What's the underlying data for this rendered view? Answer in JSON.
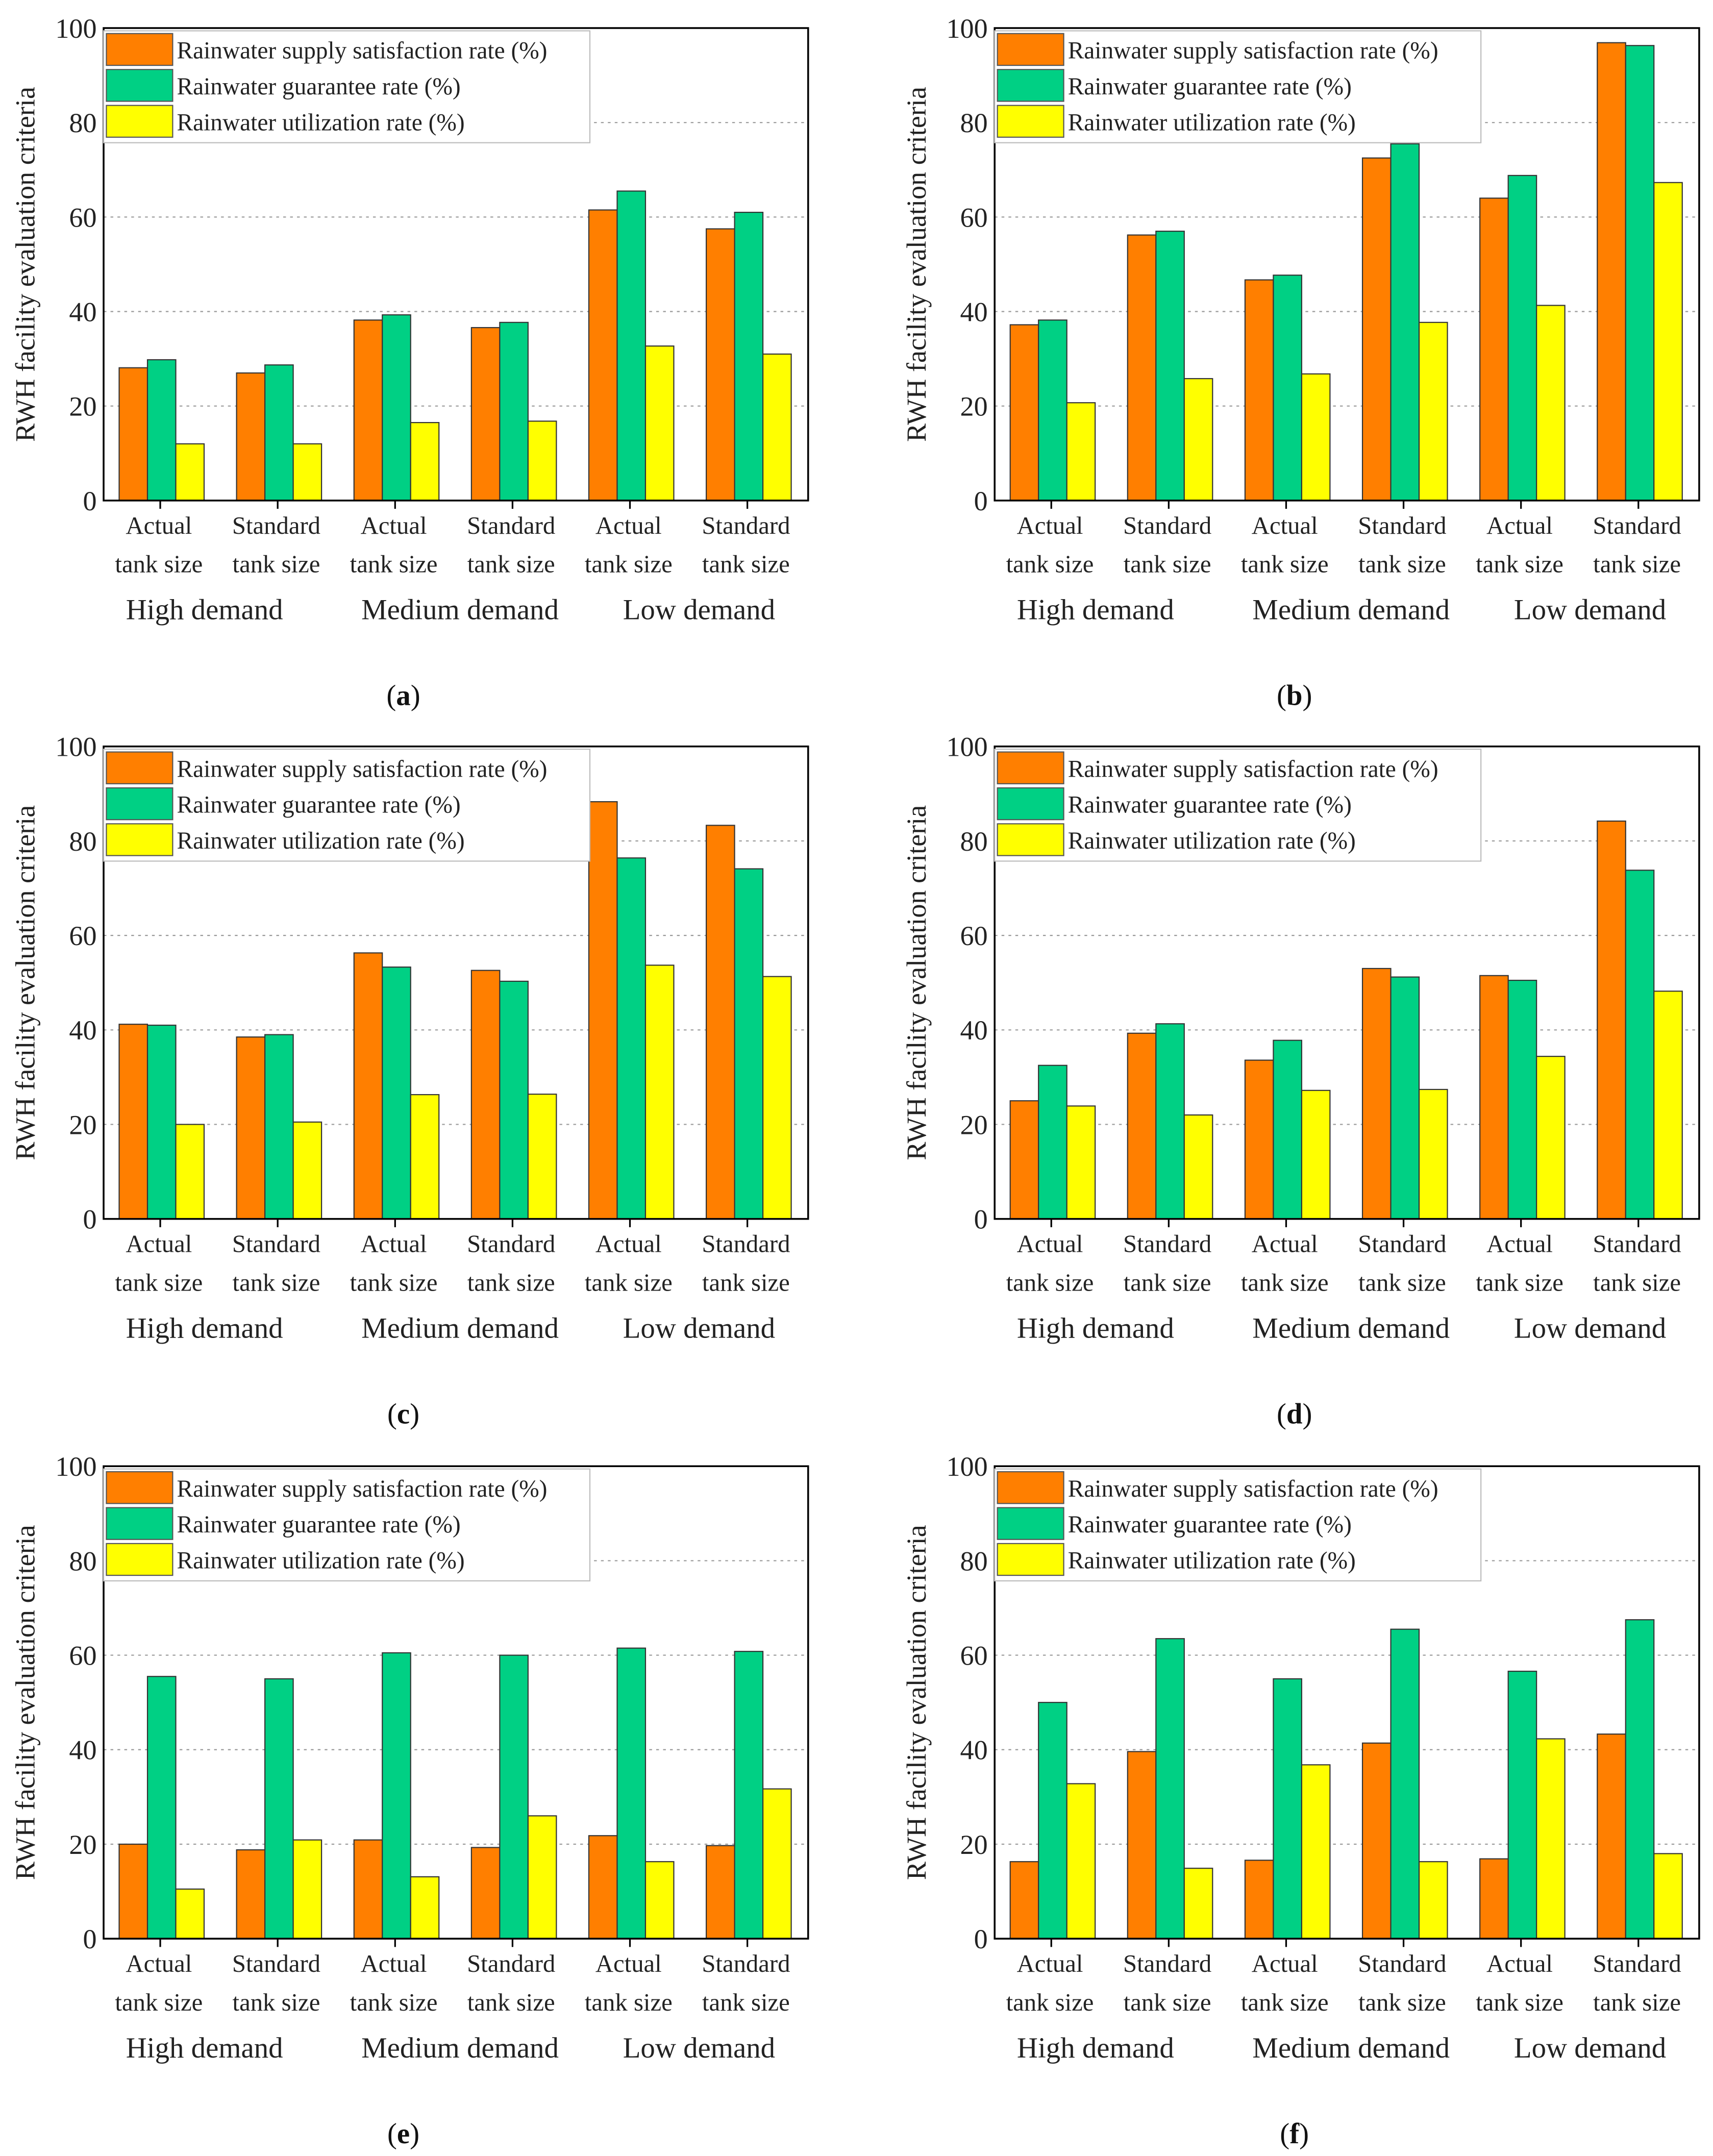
{
  "colors": {
    "supply": "#ff7f00",
    "guarantee": "#00d084",
    "utilization": "#ffff00"
  },
  "chart_data": [
    {
      "type": "bar",
      "panel_label": "a",
      "ylabel": "RWH facility evaluation criteria",
      "ylim": [
        0,
        100
      ],
      "yticks": [
        "0",
        "20",
        "40",
        "60",
        "80",
        "100"
      ],
      "categories": [
        [
          "Actual",
          "tank size"
        ],
        [
          "Standard",
          "tank size"
        ],
        [
          "Actual",
          "tank size"
        ],
        [
          "Standard",
          "tank size"
        ],
        [
          "Actual",
          "tank size"
        ],
        [
          "Standard",
          "tank size"
        ]
      ],
      "groups": [
        "High demand",
        "Medium demand",
        "Low demand"
      ],
      "legend_position": "top-left",
      "grid": "dashed horizontal",
      "series": [
        {
          "name": "Rainwater supply satisfaction rate (%)",
          "values": [
            28.1,
            27.0,
            38.2,
            36.6,
            61.5,
            57.5
          ]
        },
        {
          "name": "Rainwater guarantee rate (%)",
          "values": [
            29.8,
            28.7,
            39.3,
            37.7,
            65.5,
            61.0
          ]
        },
        {
          "name": "Rainwater utilization rate (%)",
          "values": [
            12.0,
            12.0,
            16.5,
            16.8,
            32.7,
            31.0
          ]
        }
      ]
    },
    {
      "type": "bar",
      "panel_label": "b",
      "ylabel": "RWH facility evaluation criteria",
      "ylim": [
        0,
        100
      ],
      "yticks": [
        "0",
        "20",
        "40",
        "60",
        "80",
        "100"
      ],
      "categories": [
        [
          "Actual",
          "tank size"
        ],
        [
          "Standard",
          "tank size"
        ],
        [
          "Actual",
          "tank size"
        ],
        [
          "Standard",
          "tank size"
        ],
        [
          "Actual",
          "tank size"
        ],
        [
          "Standard",
          "tank size"
        ]
      ],
      "groups": [
        "High demand",
        "Medium demand",
        "Low demand"
      ],
      "legend_position": "top-left",
      "grid": "dashed horizontal",
      "series": [
        {
          "name": "Rainwater supply satisfaction rate (%)",
          "values": [
            37.2,
            56.2,
            46.7,
            72.5,
            64.0,
            96.9
          ]
        },
        {
          "name": "Rainwater guarantee rate (%)",
          "values": [
            38.2,
            57.0,
            47.7,
            75.5,
            68.8,
            96.3
          ]
        },
        {
          "name": "Rainwater utilization rate (%)",
          "values": [
            20.7,
            25.8,
            26.8,
            37.7,
            41.3,
            67.3
          ]
        }
      ]
    },
    {
      "type": "bar",
      "panel_label": "c",
      "ylabel": "RWH facility evaluation criteria",
      "ylim": [
        0,
        100
      ],
      "yticks": [
        "0",
        "20",
        "40",
        "60",
        "80",
        "100"
      ],
      "categories": [
        [
          "Actual",
          "tank size"
        ],
        [
          "Standard",
          "tank size"
        ],
        [
          "Actual",
          "tank size"
        ],
        [
          "Standard",
          "tank size"
        ],
        [
          "Actual",
          "tank size"
        ],
        [
          "Standard",
          "tank size"
        ]
      ],
      "groups": [
        "High demand",
        "Medium demand",
        "Low demand"
      ],
      "legend_position": "top-left",
      "grid": "dashed horizontal",
      "series": [
        {
          "name": "Rainwater supply satisfaction rate (%)",
          "values": [
            41.2,
            38.5,
            56.3,
            52.6,
            88.3,
            83.3
          ]
        },
        {
          "name": "Rainwater guarantee rate (%)",
          "values": [
            41.0,
            39.0,
            53.3,
            50.3,
            76.4,
            74.1
          ]
        },
        {
          "name": "Rainwater utilization rate (%)",
          "values": [
            20.0,
            20.5,
            26.3,
            26.4,
            53.7,
            51.3
          ]
        }
      ]
    },
    {
      "type": "bar",
      "panel_label": "d",
      "ylabel": "RWH facility evaluation criteria",
      "ylim": [
        0,
        100
      ],
      "yticks": [
        "0",
        "20",
        "40",
        "60",
        "80",
        "100"
      ],
      "categories": [
        [
          "Actual",
          "tank size"
        ],
        [
          "Standard",
          "tank size"
        ],
        [
          "Actual",
          "tank size"
        ],
        [
          "Standard",
          "tank size"
        ],
        [
          "Actual",
          "tank size"
        ],
        [
          "Standard",
          "tank size"
        ]
      ],
      "groups": [
        "High demand",
        "Medium demand",
        "Low demand"
      ],
      "legend_position": "top-left",
      "grid": "dashed horizontal",
      "series": [
        {
          "name": "Rainwater supply satisfaction rate (%)",
          "values": [
            25.0,
            39.3,
            33.6,
            53.0,
            51.5,
            84.2
          ]
        },
        {
          "name": "Rainwater guarantee rate (%)",
          "values": [
            32.5,
            41.3,
            37.8,
            51.2,
            50.5,
            73.8
          ]
        },
        {
          "name": "Rainwater utilization rate (%)",
          "values": [
            23.9,
            22.0,
            27.2,
            27.4,
            34.4,
            48.2
          ]
        }
      ]
    },
    {
      "type": "bar",
      "panel_label": "e",
      "ylabel": "RWH facility evaluation criteria",
      "ylim": [
        0,
        100
      ],
      "yticks": [
        "0",
        "20",
        "40",
        "60",
        "80",
        "100"
      ],
      "categories": [
        [
          "Actual",
          "tank size"
        ],
        [
          "Standard",
          "tank size"
        ],
        [
          "Actual",
          "tank size"
        ],
        [
          "Standard",
          "tank size"
        ],
        [
          "Actual",
          "tank size"
        ],
        [
          "Standard",
          "tank size"
        ]
      ],
      "groups": [
        "High demand",
        "Medium demand",
        "Low demand"
      ],
      "legend_position": "top-left",
      "grid": "dashed horizontal",
      "series": [
        {
          "name": "Rainwater supply satisfaction rate (%)",
          "values": [
            20.0,
            18.8,
            20.9,
            19.3,
            21.8,
            19.7
          ]
        },
        {
          "name": "Rainwater guarantee rate (%)",
          "values": [
            55.5,
            55.0,
            60.5,
            60.0,
            61.5,
            60.8
          ]
        },
        {
          "name": "Rainwater utilization rate (%)",
          "values": [
            10.5,
            20.9,
            13.1,
            26.0,
            16.3,
            31.7
          ]
        }
      ]
    },
    {
      "type": "bar",
      "panel_label": "f",
      "ylabel": "RWH facility evaluation criteria",
      "ylim": [
        0,
        100
      ],
      "yticks": [
        "0",
        "20",
        "40",
        "60",
        "80",
        "100"
      ],
      "categories": [
        [
          "Actual",
          "tank size"
        ],
        [
          "Standard",
          "tank size"
        ],
        [
          "Actual",
          "tank size"
        ],
        [
          "Standard",
          "tank size"
        ],
        [
          "Actual",
          "tank size"
        ],
        [
          "Standard",
          "tank size"
        ]
      ],
      "groups": [
        "High demand",
        "Medium demand",
        "Low demand"
      ],
      "legend_position": "top-left",
      "grid": "dashed horizontal",
      "series": [
        {
          "name": "Rainwater supply satisfaction rate (%)",
          "values": [
            16.3,
            39.6,
            16.6,
            41.4,
            16.9,
            43.3
          ]
        },
        {
          "name": "Rainwater guarantee rate (%)",
          "values": [
            50.0,
            63.5,
            55.0,
            65.5,
            56.6,
            67.5
          ]
        },
        {
          "name": "Rainwater utilization rate (%)",
          "values": [
            32.8,
            14.9,
            36.8,
            16.3,
            42.3,
            18.0
          ]
        }
      ]
    }
  ]
}
